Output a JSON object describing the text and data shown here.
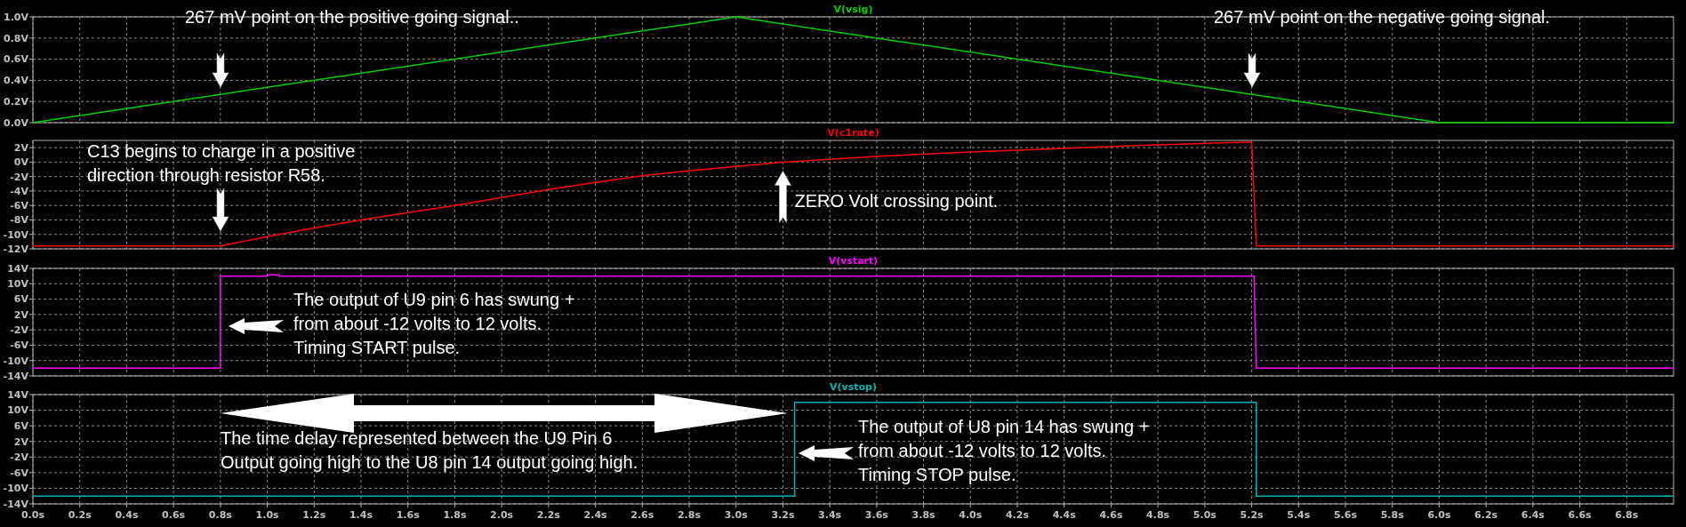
{
  "chart_data": [
    {
      "type": "line",
      "xlim": [
        0,
        7
      ],
      "ylim": [
        0,
        1.0
      ],
      "tick_labels": "y",
      "grid": true,
      "xticks": [
        {
          "value": 0,
          "label": null
        },
        {
          "value": 0.2,
          "label": null
        },
        {
          "value": 0.4,
          "label": null
        },
        {
          "value": 0.6,
          "label": null
        },
        {
          "value": 0.8,
          "label": null
        },
        {
          "value": 1.0,
          "label": null
        },
        {
          "value": 1.2,
          "label": null
        },
        {
          "value": 1.4,
          "label": null
        },
        {
          "value": 1.6,
          "label": null
        },
        {
          "value": 1.8,
          "label": null
        },
        {
          "value": 2.0,
          "label": null
        },
        {
          "value": 2.2,
          "label": null
        },
        {
          "value": 2.4,
          "label": null
        },
        {
          "value": 2.6,
          "label": null
        },
        {
          "value": 2.8,
          "label": null
        },
        {
          "value": 3.0,
          "label": null
        },
        {
          "value": 3.2,
          "label": null
        },
        {
          "value": 3.4,
          "label": null
        },
        {
          "value": 3.6,
          "label": null
        },
        {
          "value": 3.8,
          "label": null
        },
        {
          "value": 4.0,
          "label": null
        },
        {
          "value": 4.2,
          "label": null
        },
        {
          "value": 4.4,
          "label": null
        },
        {
          "value": 4.6,
          "label": null
        },
        {
          "value": 4.8,
          "label": null
        },
        {
          "value": 5.0,
          "label": null
        },
        {
          "value": 5.2,
          "label": null
        },
        {
          "value": 5.4,
          "label": null
        },
        {
          "value": 5.6,
          "label": null
        },
        {
          "value": 5.8,
          "label": null
        },
        {
          "value": 6.0,
          "label": null
        },
        {
          "value": 6.2,
          "label": null
        },
        {
          "value": 6.4,
          "label": null
        },
        {
          "value": 6.6,
          "label": null
        },
        {
          "value": 6.8,
          "label": null
        }
      ],
      "yticks": [
        {
          "value": 0,
          "label": "0.0V"
        },
        {
          "value": 0.2,
          "label": "0.2V"
        },
        {
          "value": 0.4,
          "label": "0.4V"
        },
        {
          "value": 0.6,
          "label": "0.6V"
        },
        {
          "value": 0.8,
          "label": "0.8V"
        },
        {
          "value": 1.0,
          "label": "1.0V"
        }
      ],
      "series": [
        {
          "name": "V(vsig)",
          "color": "#00d000",
          "x": [
            0,
            3,
            6,
            7
          ],
          "values": [
            0,
            1,
            0,
            0
          ]
        }
      ],
      "annotations": [
        "267 mV point on the positive going signal..",
        "267 mV point on the negative going signal."
      ]
    },
    {
      "type": "line",
      "xlim": [
        0,
        7
      ],
      "ylim": [
        -12,
        3
      ],
      "tick_labels": "y",
      "grid": true,
      "xticks": [
        {
          "value": 0,
          "label": null
        },
        {
          "value": 0.2,
          "label": null
        },
        {
          "value": 0.4,
          "label": null
        },
        {
          "value": 0.6,
          "label": null
        },
        {
          "value": 0.8,
          "label": null
        },
        {
          "value": 1.0,
          "label": null
        },
        {
          "value": 1.2,
          "label": null
        },
        {
          "value": 1.4,
          "label": null
        },
        {
          "value": 1.6,
          "label": null
        },
        {
          "value": 1.8,
          "label": null
        },
        {
          "value": 2.0,
          "label": null
        },
        {
          "value": 2.2,
          "label": null
        },
        {
          "value": 2.4,
          "label": null
        },
        {
          "value": 2.6,
          "label": null
        },
        {
          "value": 2.8,
          "label": null
        },
        {
          "value": 3.0,
          "label": null
        },
        {
          "value": 3.2,
          "label": null
        },
        {
          "value": 3.4,
          "label": null
        },
        {
          "value": 3.6,
          "label": null
        },
        {
          "value": 3.8,
          "label": null
        },
        {
          "value": 4.0,
          "label": null
        },
        {
          "value": 4.2,
          "label": null
        },
        {
          "value": 4.4,
          "label": null
        },
        {
          "value": 4.6,
          "label": null
        },
        {
          "value": 4.8,
          "label": null
        },
        {
          "value": 5.0,
          "label": null
        },
        {
          "value": 5.2,
          "label": null
        },
        {
          "value": 5.4,
          "label": null
        },
        {
          "value": 5.6,
          "label": null
        },
        {
          "value": 5.8,
          "label": null
        },
        {
          "value": 6.0,
          "label": null
        },
        {
          "value": 6.2,
          "label": null
        },
        {
          "value": 6.4,
          "label": null
        },
        {
          "value": 6.6,
          "label": null
        },
        {
          "value": 6.8,
          "label": null
        }
      ],
      "yticks": [
        {
          "value": 2,
          "label": "2V"
        },
        {
          "value": 0,
          "label": "0V"
        },
        {
          "value": -2,
          "label": "-2V"
        },
        {
          "value": -4,
          "label": "-4V"
        },
        {
          "value": -6,
          "label": "-6V"
        },
        {
          "value": -8,
          "label": "-8V"
        },
        {
          "value": -10,
          "label": "-10V"
        },
        {
          "value": -12,
          "label": "-12V"
        }
      ],
      "series": [
        {
          "name": "V(c1rate)",
          "color": "#ff0000",
          "x": [
            0,
            0.8,
            1.0,
            1.2,
            1.4,
            1.6,
            1.8,
            2.0,
            2.2,
            2.4,
            2.6,
            2.8,
            3.0,
            3.2,
            3.6,
            4.0,
            4.4,
            4.8,
            5.2,
            5.22,
            7
          ],
          "values": [
            -11.6,
            -11.6,
            -10.3,
            -9.1,
            -8.0,
            -7.0,
            -6.0,
            -4.9,
            -3.8,
            -2.8,
            -1.9,
            -1.2,
            -0.6,
            0,
            0.8,
            1.4,
            1.9,
            2.4,
            2.8,
            -11.6,
            -11.6
          ]
        }
      ],
      "annotations": [
        "C13 begins to charge in a positive\ndirection through resistor R58.",
        {
          "text": "ZERO Volt crossing point.",
          "x": 3.2,
          "y": 0
        }
      ]
    },
    {
      "type": "line",
      "xlim": [
        0,
        7
      ],
      "ylim": [
        -14,
        14
      ],
      "tick_labels": "y",
      "grid": true,
      "xticks": [
        {
          "value": 0,
          "label": null
        },
        {
          "value": 0.2,
          "label": null
        },
        {
          "value": 0.4,
          "label": null
        },
        {
          "value": 0.6,
          "label": null
        },
        {
          "value": 0.8,
          "label": null
        },
        {
          "value": 1.0,
          "label": null
        },
        {
          "value": 1.2,
          "label": null
        },
        {
          "value": 1.4,
          "label": null
        },
        {
          "value": 1.6,
          "label": null
        },
        {
          "value": 1.8,
          "label": null
        },
        {
          "value": 2.0,
          "label": null
        },
        {
          "value": 2.2,
          "label": null
        },
        {
          "value": 2.4,
          "label": null
        },
        {
          "value": 2.6,
          "label": null
        },
        {
          "value": 2.8,
          "label": null
        },
        {
          "value": 3.0,
          "label": null
        },
        {
          "value": 3.2,
          "label": null
        },
        {
          "value": 3.4,
          "label": null
        },
        {
          "value": 3.6,
          "label": null
        },
        {
          "value": 3.8,
          "label": null
        },
        {
          "value": 4.0,
          "label": null
        },
        {
          "value": 4.2,
          "label": null
        },
        {
          "value": 4.4,
          "label": null
        },
        {
          "value": 4.6,
          "label": null
        },
        {
          "value": 4.8,
          "label": null
        },
        {
          "value": 5.0,
          "label": null
        },
        {
          "value": 5.2,
          "label": null
        },
        {
          "value": 5.4,
          "label": null
        },
        {
          "value": 5.6,
          "label": null
        },
        {
          "value": 5.8,
          "label": null
        },
        {
          "value": 6.0,
          "label": null
        },
        {
          "value": 6.2,
          "label": null
        },
        {
          "value": 6.4,
          "label": null
        },
        {
          "value": 6.6,
          "label": null
        },
        {
          "value": 6.8,
          "label": null
        }
      ],
      "yticks": [
        {
          "value": 14,
          "label": "14V"
        },
        {
          "value": 10,
          "label": "10V"
        },
        {
          "value": 6,
          "label": "6V"
        },
        {
          "value": 2,
          "label": "2V"
        },
        {
          "value": -2,
          "label": "-2V"
        },
        {
          "value": -6,
          "label": "-6V"
        },
        {
          "value": -10,
          "label": "-10V"
        },
        {
          "value": -14,
          "label": "-14V"
        }
      ],
      "series": [
        {
          "name": "V(vstart)",
          "color": "#ff00ff",
          "x": [
            0,
            0.8,
            0.8,
            1.0,
            1.0,
            1.05,
            1.05,
            5.21,
            5.22,
            7
          ],
          "values": [
            -12,
            -12,
            12,
            12,
            12.3,
            12.3,
            12,
            12,
            -12,
            -12
          ]
        }
      ],
      "annotations": [
        "The output of U9 pin 6 has swung +\nfrom about -12 volts to 12 volts.\nTiming START pulse."
      ]
    },
    {
      "type": "line",
      "xlim": [
        0,
        7
      ],
      "ylim": [
        -14,
        14
      ],
      "grid": true,
      "xticks": [
        {
          "value": 0,
          "label": "0.0s"
        },
        {
          "value": 0.2,
          "label": "0.2s"
        },
        {
          "value": 0.4,
          "label": "0.4s"
        },
        {
          "value": 0.6,
          "label": "0.6s"
        },
        {
          "value": 0.8,
          "label": "0.8s"
        },
        {
          "value": 1.0,
          "label": "1.0s"
        },
        {
          "value": 1.2,
          "label": "1.2s"
        },
        {
          "value": 1.4,
          "label": "1.4s"
        },
        {
          "value": 1.6,
          "label": "1.6s"
        },
        {
          "value": 1.8,
          "label": "1.8s"
        },
        {
          "value": 2.0,
          "label": "2.0s"
        },
        {
          "value": 2.2,
          "label": "2.2s"
        },
        {
          "value": 2.4,
          "label": "2.4s"
        },
        {
          "value": 2.6,
          "label": "2.6s"
        },
        {
          "value": 2.8,
          "label": "2.8s"
        },
        {
          "value": 3.0,
          "label": "3.0s"
        },
        {
          "value": 3.2,
          "label": "3.2s"
        },
        {
          "value": 3.4,
          "label": "3.4s"
        },
        {
          "value": 3.6,
          "label": "3.6s"
        },
        {
          "value": 3.8,
          "label": "3.8s"
        },
        {
          "value": 4.0,
          "label": "4.0s"
        },
        {
          "value": 4.2,
          "label": "4.2s"
        },
        {
          "value": 4.4,
          "label": "4.4s"
        },
        {
          "value": 4.6,
          "label": "4.6s"
        },
        {
          "value": 4.8,
          "label": "4.8s"
        },
        {
          "value": 5.0,
          "label": "5.0s"
        },
        {
          "value": 5.2,
          "label": "5.2s"
        },
        {
          "value": 5.4,
          "label": "5.4s"
        },
        {
          "value": 5.6,
          "label": "5.6s"
        },
        {
          "value": 5.8,
          "label": "5.8s"
        },
        {
          "value": 6.0,
          "label": "6.0s"
        },
        {
          "value": 6.2,
          "label": "6.2s"
        },
        {
          "value": 6.4,
          "label": "6.4s"
        },
        {
          "value": 6.6,
          "label": "6.6s"
        },
        {
          "value": 6.8,
          "label": "6.8s"
        }
      ],
      "yticks": [
        {
          "value": 14,
          "label": "14V"
        },
        {
          "value": 10,
          "label": "10V"
        },
        {
          "value": 6,
          "label": "6V"
        },
        {
          "value": 2,
          "label": "2V"
        },
        {
          "value": -2,
          "label": "-2V"
        },
        {
          "value": -6,
          "label": "-6V"
        },
        {
          "value": -10,
          "label": "-10V"
        },
        {
          "value": -14,
          "label": "-14V"
        }
      ],
      "series": [
        {
          "name": "V(vstop)",
          "color": "#00b4b4",
          "x": [
            0,
            3.25,
            3.25,
            5.22,
            5.22,
            7
          ],
          "values": [
            -12,
            -12,
            12,
            12,
            -12,
            -12
          ]
        }
      ],
      "annotations": [
        "The output of U8 pin 14 has swung +\nfrom about -12 volts to 12 volts.\nTiming STOP pulse.",
        "The time delay represented between the U9 Pin 6\nOutput going high to the U8 pin 14 output going high."
      ]
    }
  ]
}
